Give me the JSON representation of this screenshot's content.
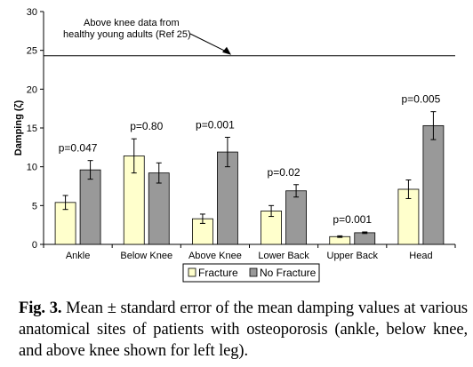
{
  "chart_data": {
    "type": "bar",
    "categories": [
      "Ankle",
      "Below Knee",
      "Above Knee",
      "Lower Back",
      "Upper Back",
      "Head"
    ],
    "series": [
      {
        "name": "Fracture",
        "color": "#ffffcc",
        "values": [
          5.4,
          11.4,
          3.3,
          4.3,
          1.0,
          7.1
        ],
        "errors": [
          0.9,
          2.2,
          0.6,
          0.7,
          0.1,
          1.2
        ]
      },
      {
        "name": "No Fracture",
        "color": "#999999",
        "values": [
          9.6,
          9.2,
          11.9,
          6.9,
          1.5,
          15.3
        ],
        "errors": [
          1.2,
          1.3,
          1.9,
          0.8,
          0.1,
          1.8
        ]
      }
    ],
    "p_values": [
      "p=0.047",
      "p=0.80",
      "p=0.001",
      "p=0.02",
      "p=0.001",
      "p=0.005"
    ],
    "ylabel": "Damping (ζ)",
    "ylim": [
      0,
      30
    ],
    "yticks": [
      0,
      5,
      10,
      15,
      20,
      25,
      30
    ],
    "reference": {
      "value": 24.3,
      "label_lines": [
        "Above knee  data from",
        "healthy young adults (Ref 25)"
      ]
    },
    "legend_position": "bottom"
  },
  "caption": {
    "label": "Fig. 3.",
    "text": " Mean ± standard error of the mean damping values at various anatomical sites of patients with osteoporosis (ankle, below knee, and above knee shown for left leg)."
  }
}
